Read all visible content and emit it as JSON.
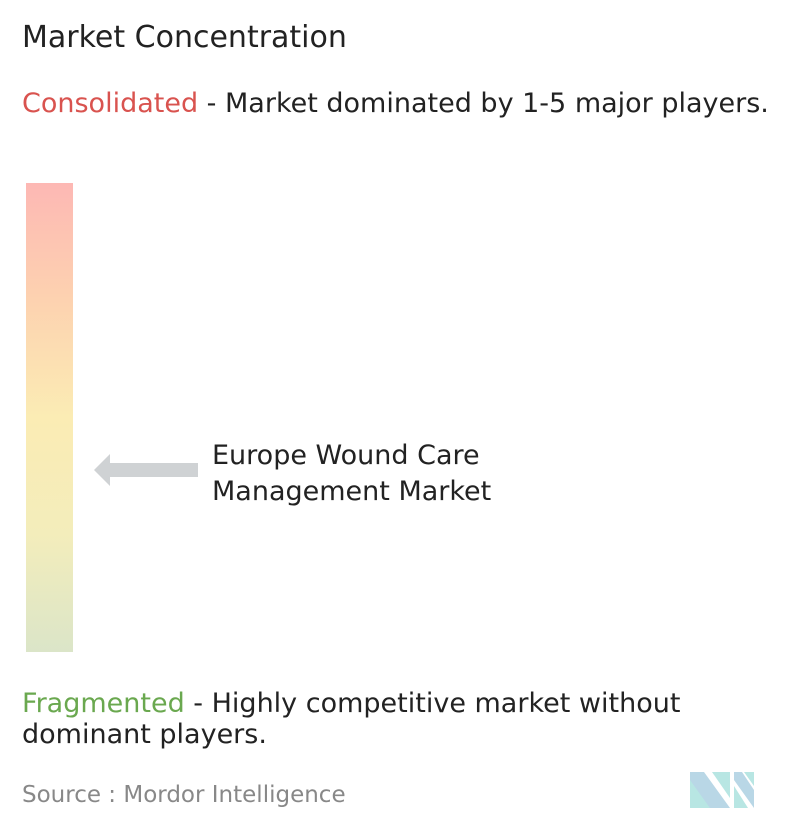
{
  "title": "Market Concentration",
  "consolidated": {
    "label": "Consolidated",
    "description": " - Market dominated by 1-5 major players.",
    "color": "#d9534f"
  },
  "fragmented": {
    "label": "Fragmented",
    "description": " - Highly competitive market without dominant players.",
    "color": "#6aa84f"
  },
  "scale": {
    "top_color": "#fdb8b4",
    "middle_color": "#fbecb4",
    "bottom_color": "#dbe5c8"
  },
  "marker": {
    "label": "Europe Wound Care Management Market",
    "position_percent": 38,
    "color": "#cfd2d4"
  },
  "source": "Source :  Mordor Intelligence",
  "logo": {
    "text": "Mordor Intelligence",
    "colors": [
      "#b9d7e6",
      "#b8e6e3"
    ]
  }
}
